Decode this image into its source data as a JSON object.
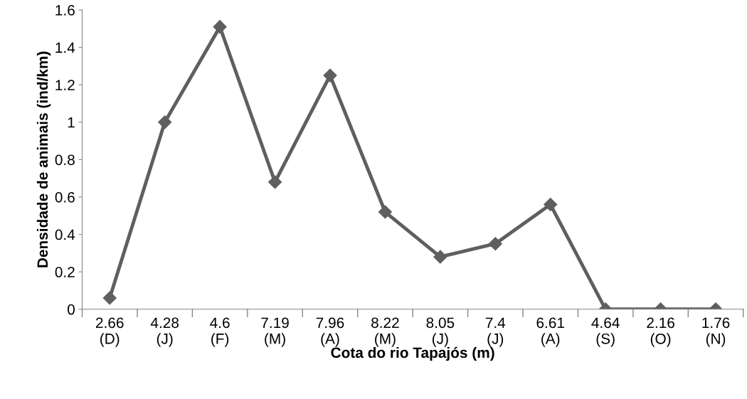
{
  "chart_data": {
    "type": "line",
    "xlabel": "Cota do rio Tapajós (m)",
    "ylabel": "Densidade de animais (ind/km)",
    "categories": [
      "2.66\n(D)",
      "4.28\n(J)",
      "4.6\n(F)",
      "7.19\n(M)",
      "7.96\n(A)",
      "8.22\n(M)",
      "8.05\n(J)",
      "7.4\n(J)",
      "6.61\n(A)",
      "4.64\n(S)",
      "2.16\n(O)",
      "1.76\n(N)"
    ],
    "series": [
      {
        "color": "#5f5f5f",
        "values": [
          0.06,
          1.0,
          1.51,
          0.68,
          1.25,
          0.52,
          0.28,
          0.35,
          0.56,
          0,
          0,
          0
        ]
      }
    ],
    "ylim": [
      0,
      1.6
    ],
    "yticks": [
      0,
      0.2,
      0.4,
      0.6,
      0.8,
      1,
      1.2,
      1.4,
      1.6
    ],
    "grid": false,
    "legend": false,
    "marker": "diamond",
    "line_style": "solid"
  }
}
